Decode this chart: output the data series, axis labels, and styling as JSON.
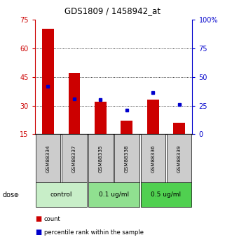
{
  "title": "GDS1809 / 1458942_at",
  "samples": [
    "GSM88334",
    "GSM88337",
    "GSM88335",
    "GSM88338",
    "GSM88336",
    "GSM88339"
  ],
  "counts": [
    70,
    47,
    32,
    22,
    33,
    21
  ],
  "percentiles": [
    42,
    31,
    30,
    21,
    36,
    26
  ],
  "groups": [
    {
      "label": "control",
      "indices": [
        0,
        1
      ],
      "color": "#c8eec8"
    },
    {
      "label": "0.1 ug/ml",
      "indices": [
        2,
        3
      ],
      "color": "#90e090"
    },
    {
      "label": "0.5 ug/ml",
      "indices": [
        4,
        5
      ],
      "color": "#50d050"
    }
  ],
  "ylim_left": [
    15,
    75
  ],
  "ylim_right": [
    0,
    100
  ],
  "yticks_left": [
    15,
    30,
    45,
    60,
    75
  ],
  "yticks_right": [
    0,
    25,
    50,
    75,
    100
  ],
  "ytick_labels_right": [
    "0",
    "25",
    "50",
    "75",
    "100%"
  ],
  "grid_lines": [
    30,
    45,
    60
  ],
  "left_axis_color": "#cc0000",
  "right_axis_color": "#0000cc",
  "bar_color_red": "#cc0000",
  "bar_color_blue": "#0000cc",
  "bg_label_row": "#cccccc",
  "dose_label": "dose",
  "legend_count": "count",
  "legend_percentile": "percentile rank within the sample"
}
